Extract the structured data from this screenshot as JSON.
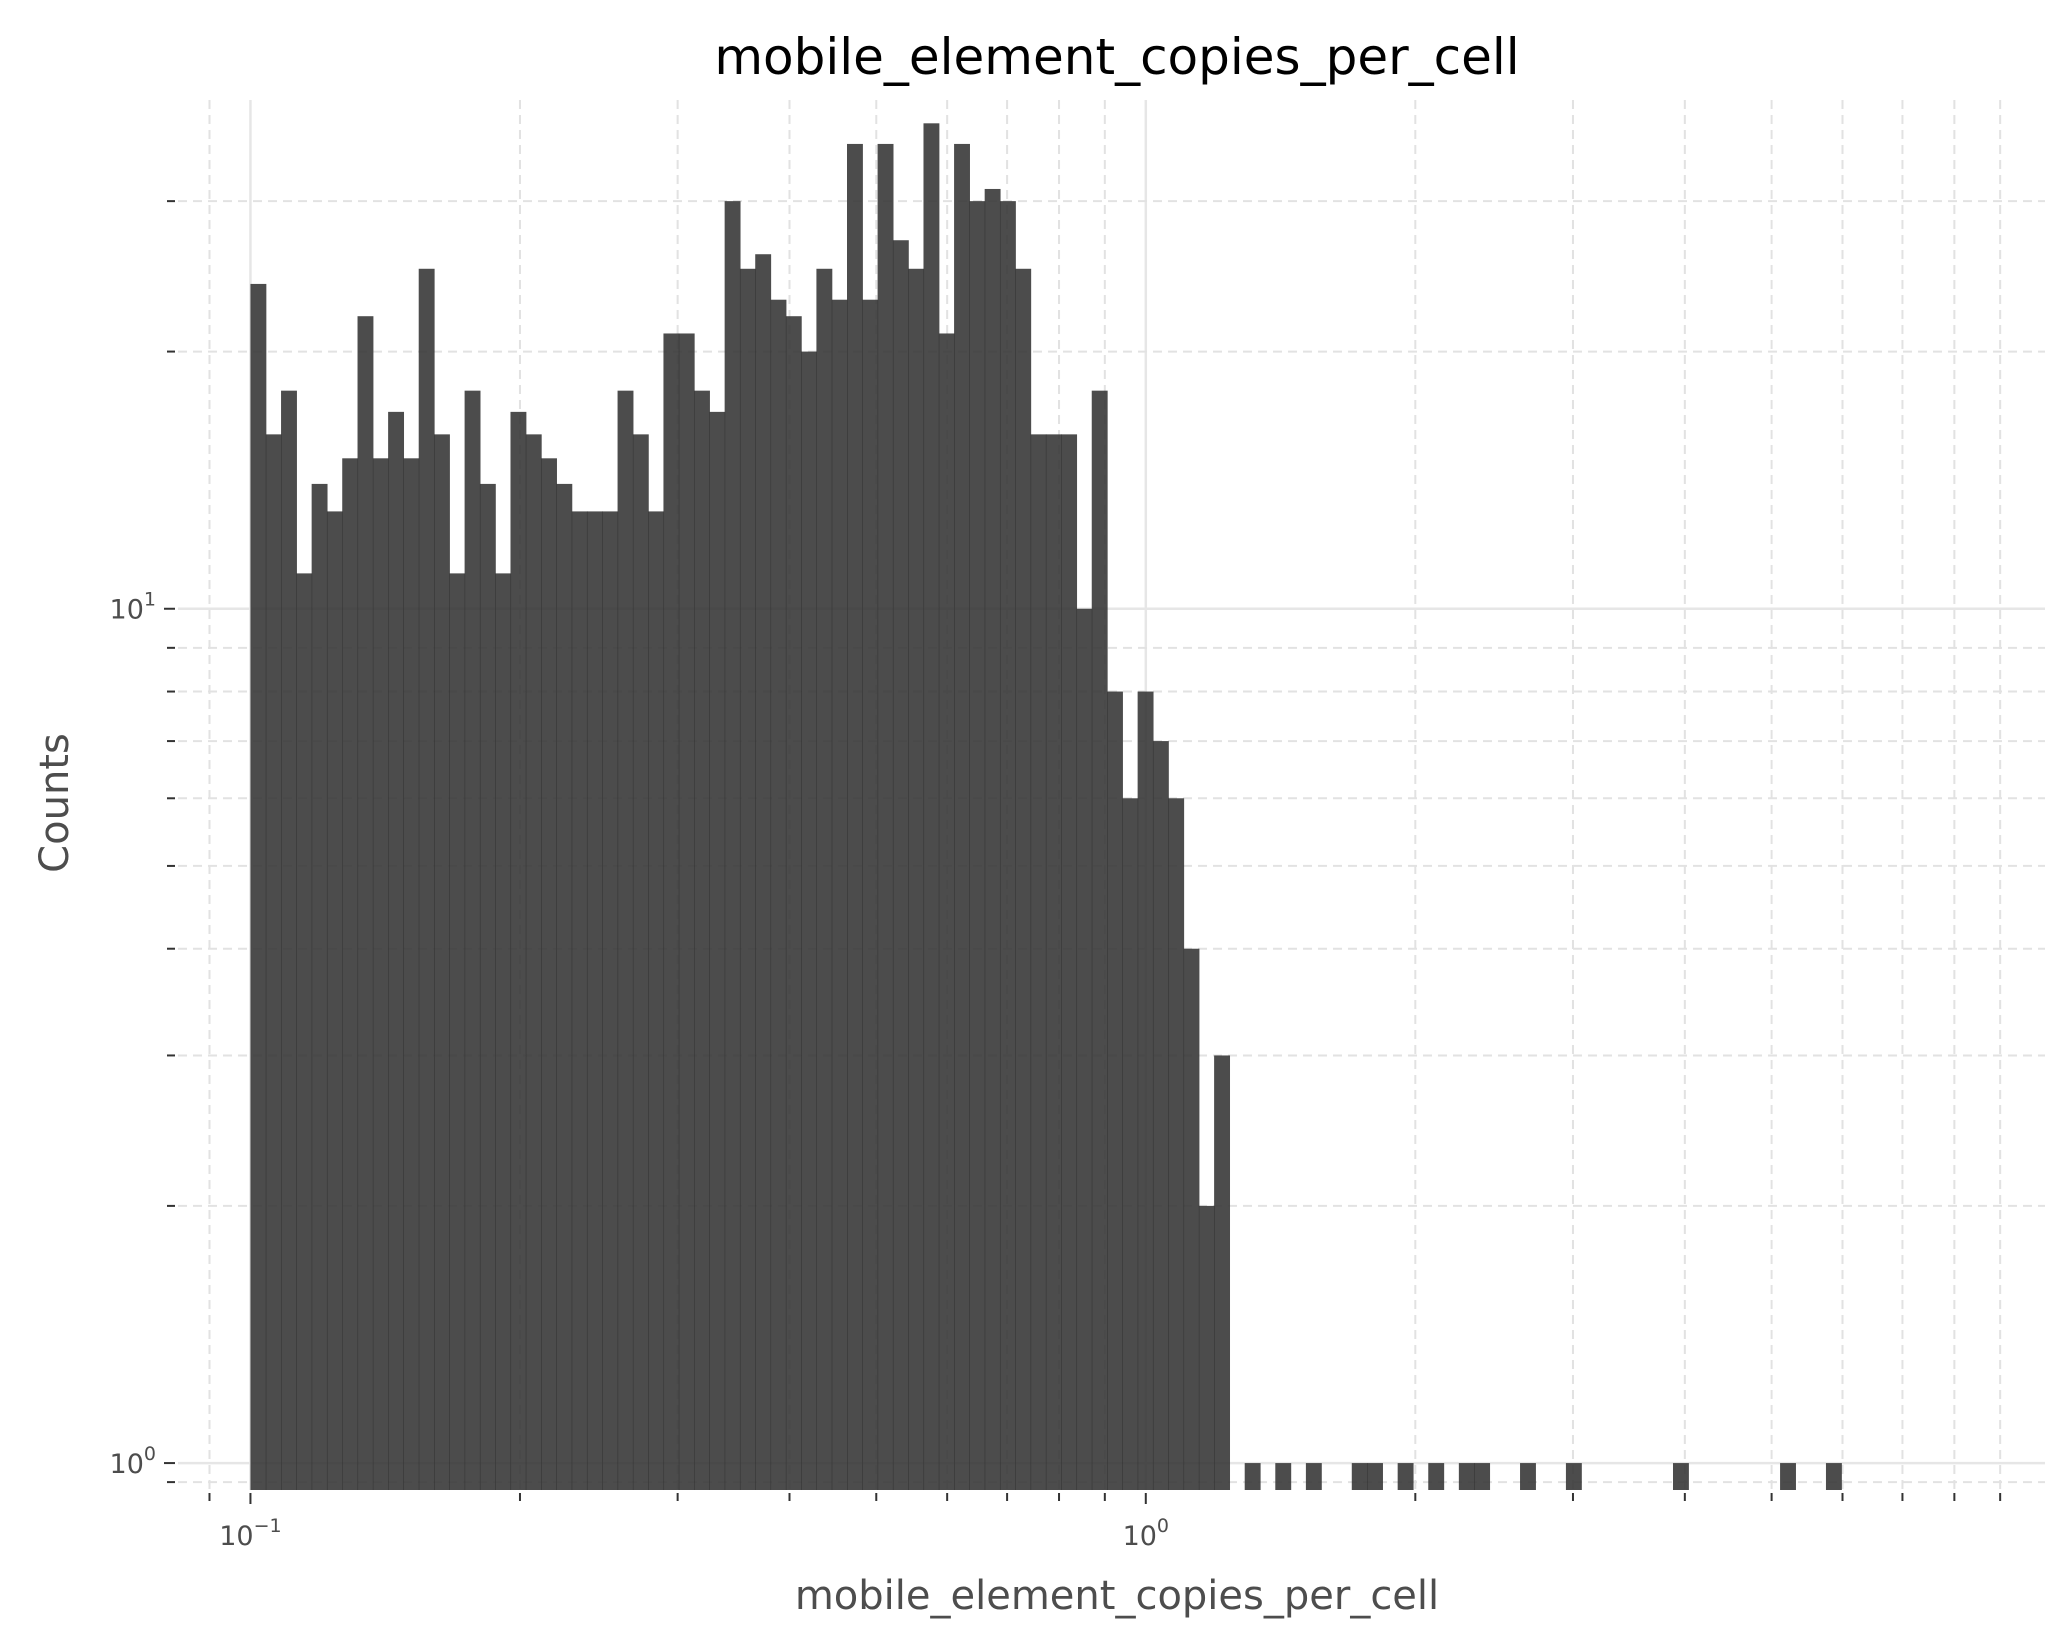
{
  "chart_data": {
    "type": "bar",
    "title": "mobile_element_copies_per_cell",
    "xlabel": "mobile_element_copies_per_cell",
    "ylabel": "Counts",
    "x_scale": "log",
    "y_scale": "log",
    "xlim": [
      0.083,
      10.1
    ],
    "ylim": [
      0.93,
      39.4
    ],
    "grid": true,
    "legend": "none",
    "bar_color": "#333333",
    "x_ticks": [
      {
        "base": "10",
        "exp": "−1",
        "value": 0.1
      },
      {
        "base": "10",
        "exp": "0",
        "value": 1
      }
    ],
    "y_ticks": [
      {
        "base": "10",
        "exp": "0",
        "value": 1
      },
      {
        "base": "10",
        "exp": "1",
        "value": 10
      }
    ],
    "bins": {
      "x_start": 0.1,
      "x_end": 7.0,
      "count": 108
    },
    "values": [
      24,
      16,
      18,
      11,
      14,
      13,
      15,
      22,
      15,
      17,
      15,
      25,
      16,
      11,
      18,
      14,
      11,
      17,
      16,
      15,
      14,
      13,
      13,
      13,
      18,
      16,
      13,
      21,
      21,
      18,
      17,
      30,
      25,
      26,
      23,
      22,
      20,
      25,
      23,
      35,
      23,
      35,
      27,
      25,
      37,
      21,
      35,
      30,
      31,
      30,
      25,
      16,
      16,
      16,
      10,
      18,
      8,
      6,
      8,
      7,
      6,
      4,
      2,
      3,
      0,
      1,
      0,
      1,
      0,
      1,
      0,
      0,
      1,
      1,
      0,
      1,
      0,
      1,
      0,
      1,
      1,
      0,
      0,
      1,
      0,
      0,
      1,
      0,
      0,
      0,
      0,
      0,
      0,
      1,
      0,
      0,
      0,
      0,
      0,
      0,
      1,
      0,
      0,
      1,
      0,
      0,
      0,
      0
    ]
  }
}
